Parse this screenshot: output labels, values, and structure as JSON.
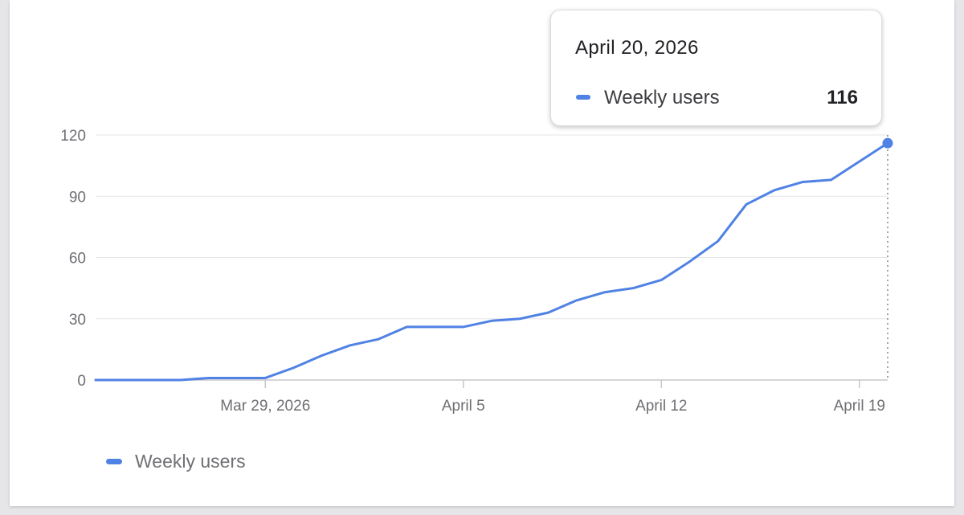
{
  "chart_data": {
    "type": "line",
    "x": [
      "2026-03-23",
      "2026-03-24",
      "2026-03-25",
      "2026-03-26",
      "2026-03-27",
      "2026-03-28",
      "2026-03-29",
      "2026-03-30",
      "2026-03-31",
      "2026-04-01",
      "2026-04-02",
      "2026-04-03",
      "2026-04-04",
      "2026-04-05",
      "2026-04-06",
      "2026-04-07",
      "2026-04-08",
      "2026-04-09",
      "2026-04-10",
      "2026-04-11",
      "2026-04-12",
      "2026-04-13",
      "2026-04-14",
      "2026-04-15",
      "2026-04-16",
      "2026-04-17",
      "2026-04-18",
      "2026-04-19",
      "2026-04-20"
    ],
    "series": [
      {
        "name": "Weekly users",
        "color": "#4f82e4",
        "values": [
          0,
          0,
          0,
          0,
          1,
          1,
          1,
          6,
          12,
          17,
          20,
          26,
          26,
          26,
          29,
          30,
          33,
          39,
          43,
          45,
          49,
          58,
          68,
          86,
          93,
          97,
          98,
          107,
          116
        ]
      }
    ],
    "ylim": [
      0,
      120
    ],
    "y_ticks": [
      "0",
      "30",
      "60",
      "90",
      "120"
    ],
    "x_ticks": [
      {
        "date": "2026-03-29",
        "label": "Mar 29, 2026"
      },
      {
        "date": "2026-04-05",
        "label": "April 5"
      },
      {
        "date": "2026-04-12",
        "label": "April 12"
      },
      {
        "date": "2026-04-19",
        "label": "April 19"
      }
    ],
    "grid": true,
    "legend": "bottom-left",
    "highlight": {
      "date": "2026-04-20",
      "date_label": "April 20, 2026",
      "series": "Weekly users",
      "value": "116"
    }
  }
}
